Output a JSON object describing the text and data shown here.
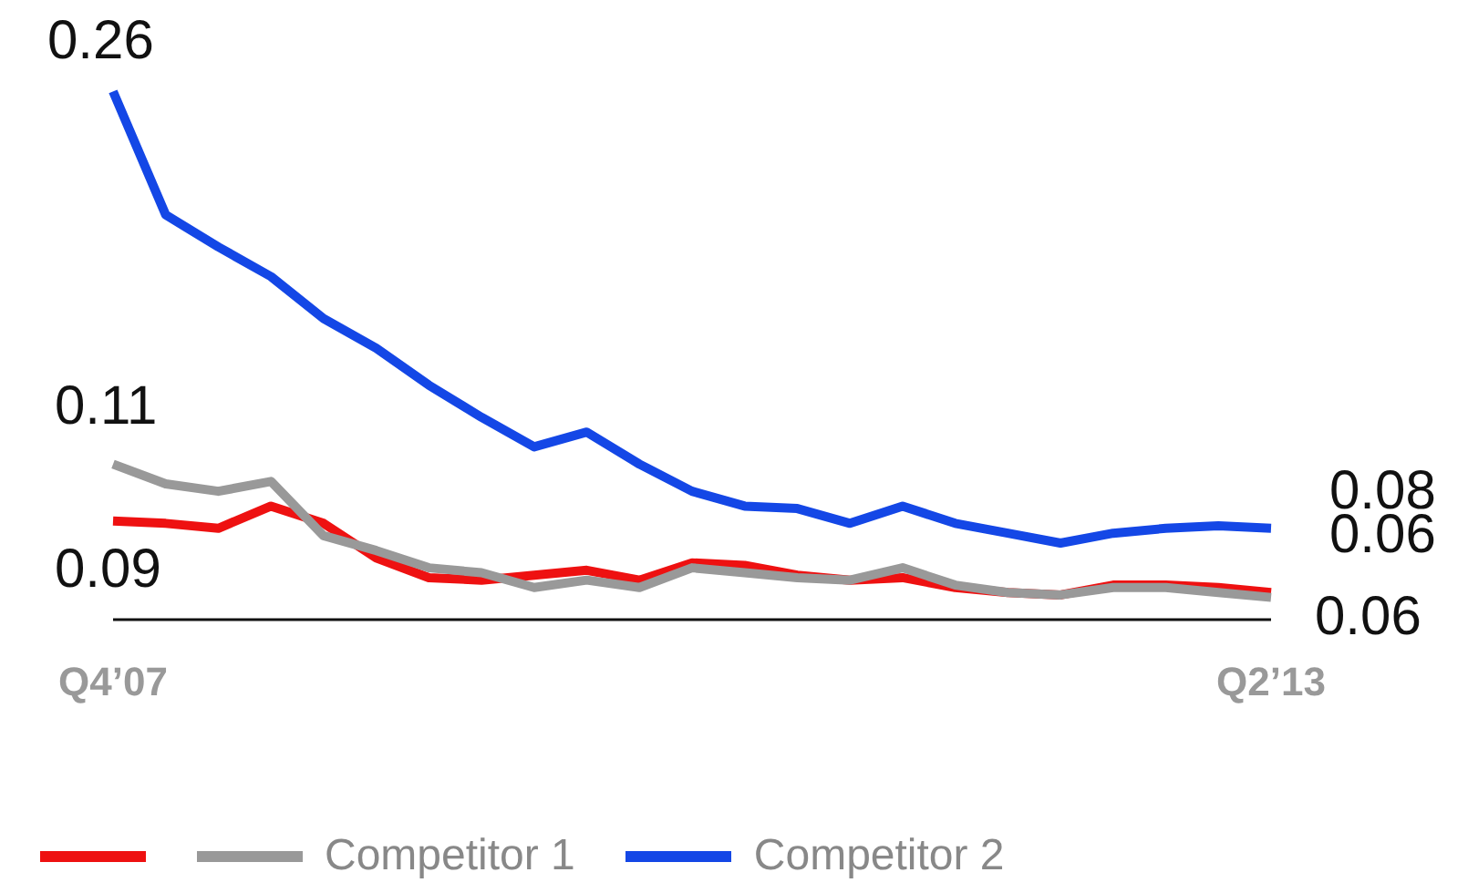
{
  "chart_data": {
    "type": "line",
    "categories": [
      "Q4’07",
      null,
      null,
      null,
      null,
      null,
      null,
      null,
      null,
      null,
      null,
      null,
      null,
      null,
      null,
      null,
      null,
      null,
      null,
      null,
      null,
      null,
      "Q2’13"
    ],
    "series": [
      {
        "color": "#ee1111",
        "values": [
          0.087,
          0.086,
          0.084,
          0.093,
          0.086,
          0.072,
          0.064,
          0.063,
          0.065,
          0.067,
          0.063,
          0.07,
          0.069,
          0.065,
          0.063,
          0.064,
          0.06,
          0.058,
          0.057,
          0.061,
          0.061,
          0.06,
          0.058
        ],
        "value_labels": [
          "0.09",
          null,
          null,
          null,
          null,
          null,
          null,
          null,
          null,
          null,
          null,
          null,
          null,
          null,
          null,
          null,
          null,
          null,
          null,
          null,
          null,
          null,
          "0.06"
        ]
      },
      {
        "name": "Competitor 1",
        "color": "#999999",
        "values": [
          0.11,
          0.102,
          0.099,
          0.103,
          0.081,
          0.075,
          0.068,
          0.066,
          0.06,
          0.063,
          0.06,
          0.068,
          0.066,
          0.064,
          0.063,
          0.068,
          0.061,
          0.058,
          0.057,
          0.06,
          0.06,
          0.058,
          0.056
        ],
        "value_labels": [
          "0.11",
          null,
          null,
          null,
          null,
          null,
          null,
          null,
          null,
          null,
          null,
          null,
          null,
          null,
          null,
          null,
          null,
          null,
          null,
          null,
          null,
          null,
          "0.06"
        ]
      },
      {
        "name": "Competitor 2",
        "color": "#1447e6",
        "values": [
          0.261,
          0.211,
          0.198,
          0.186,
          0.169,
          0.157,
          0.142,
          0.129,
          0.117,
          0.123,
          0.11,
          0.099,
          0.093,
          0.092,
          0.086,
          0.093,
          0.086,
          0.082,
          0.078,
          0.082,
          0.084,
          0.085,
          0.084
        ],
        "value_labels": [
          "0.26",
          null,
          null,
          null,
          null,
          null,
          null,
          null,
          null,
          null,
          null,
          null,
          null,
          null,
          null,
          null,
          null,
          null,
          null,
          null,
          null,
          null,
          "0.08"
        ]
      }
    ],
    "grid": false,
    "legend": "bottom",
    "marker": "none",
    "line_style": "solid",
    "tick_labels": "x"
  }
}
